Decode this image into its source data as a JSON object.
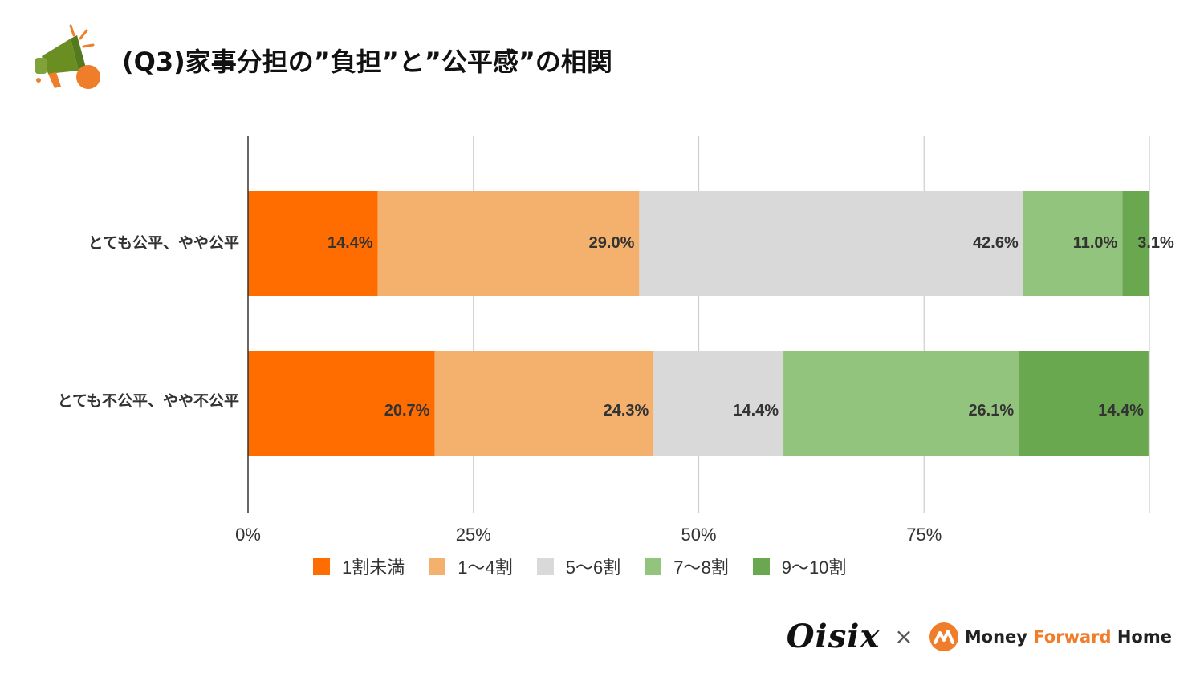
{
  "title": "(Q3)家事分担の”負担”と”公平感”の相関",
  "brand": {
    "oisix": "Oisix",
    "times": "×",
    "mf_part1": "Money ",
    "mf_part2": "Forward",
    "mf_part3": " Home",
    "accent_color": "#f07d2a"
  },
  "legend_items": [
    {
      "label": "1割未満",
      "color": "#ff6d01"
    },
    {
      "label": "1〜4割",
      "color": "#f4b16d"
    },
    {
      "label": "5〜6割",
      "color": "#d9d9d9"
    },
    {
      "label": "7〜8割",
      "color": "#93c47d"
    },
    {
      "label": "9〜10割",
      "color": "#6aa84f"
    }
  ],
  "chart_data": {
    "type": "bar",
    "orientation": "horizontal",
    "stacked": true,
    "categories": [
      "とても公平、やや公平",
      "とても不公平、やや不公平"
    ],
    "series": [
      {
        "name": "1割未満",
        "values": [
          14.4,
          20.7
        ],
        "labels": [
          "14.4%",
          "20.7%"
        ],
        "color": "#ff6d01"
      },
      {
        "name": "1〜4割",
        "values": [
          29.0,
          24.3
        ],
        "labels": [
          "29.0%",
          "24.3%"
        ],
        "color": "#f4b16d"
      },
      {
        "name": "5〜6割",
        "values": [
          42.6,
          14.4
        ],
        "labels": [
          "42.6%",
          "14.4%"
        ],
        "color": "#d9d9d9"
      },
      {
        "name": "7〜8割",
        "values": [
          11.0,
          26.1
        ],
        "labels": [
          "11.0%",
          "26.1%"
        ],
        "color": "#93c47d"
      },
      {
        "name": "9〜10割",
        "values": [
          3.1,
          14.4
        ],
        "labels": [
          "3.1%",
          "14.4%"
        ],
        "color": "#6aa84f"
      }
    ],
    "x_ticks": [
      "0%",
      "25%",
      "50%",
      "75%"
    ],
    "xlim": [
      0,
      100
    ],
    "grid": true,
    "legend_position": "bottom"
  }
}
